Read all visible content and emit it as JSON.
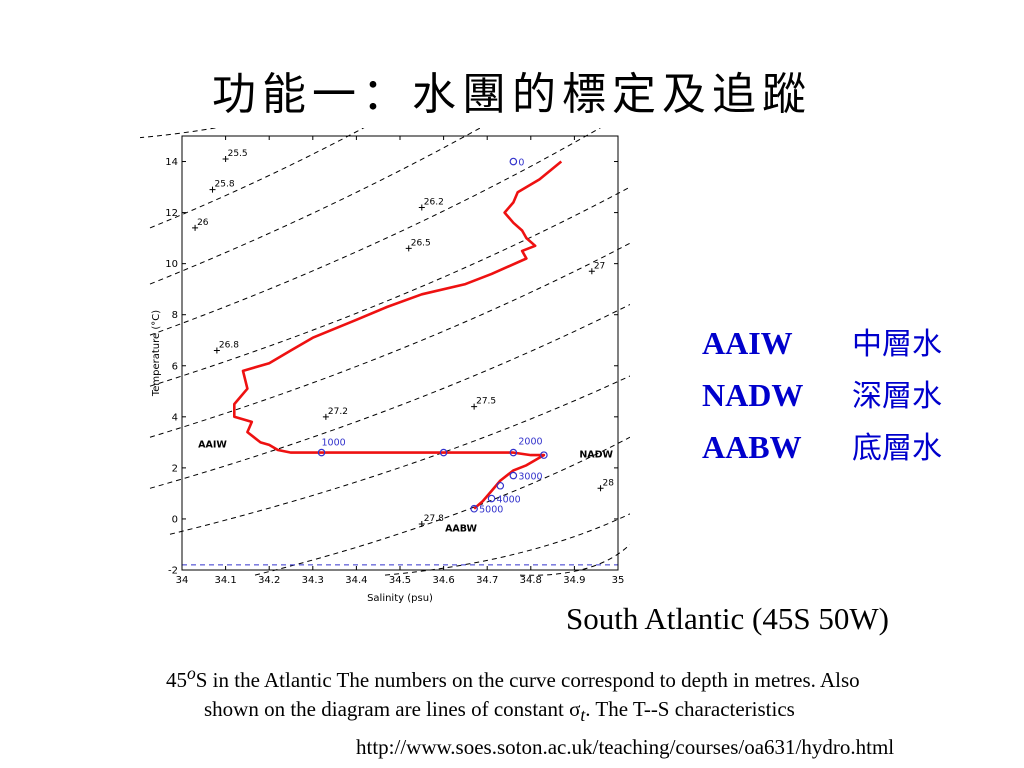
{
  "slide": {
    "title": "功能一：水團的標定及追蹤",
    "location": "South Atlantic (45S 50W)",
    "caption": {
      "lat": "45",
      "deg_sup": "o",
      "line1_rest": "S in the Atlantic The numbers on the curve correspond to depth in metres. Also",
      "line2_a": "shown on the diagram are lines of constant ",
      "sigma": "σ",
      "sigma_sub": "t",
      "line2_b": ". The T--S characteristics"
    },
    "url": "http://www.soes.soton.ac.uk/teaching/courses/oa631/hydro.html"
  },
  "legend": [
    {
      "abbr": "AAIW",
      "zh": "中層水"
    },
    {
      "abbr": "NADW",
      "zh": "深層水"
    },
    {
      "abbr": "AABW",
      "zh": "底層水"
    }
  ],
  "colors": {
    "curve": "#ee1111",
    "depth_marker": "#3333cc",
    "legend_text": "#0000cc",
    "isopycnal": "#000000"
  },
  "chart_data": {
    "type": "line",
    "xlabel": "Salinity (psu)",
    "ylabel": "Temperature (°C)",
    "xlim": [
      34,
      35
    ],
    "ylim": [
      -2,
      15
    ],
    "xticks": [
      "34",
      "34.1",
      "34.2",
      "34.3",
      "34.4",
      "34.5",
      "34.6",
      "34.7",
      "34.8",
      "34.9",
      "35"
    ],
    "yticks": [
      "-2",
      "0",
      "2",
      "4",
      "6",
      "8",
      "10",
      "12",
      "14"
    ],
    "grid": false,
    "series": [
      {
        "style": "solid",
        "x": [
          34.87,
          34.82,
          34.77,
          34.76,
          34.74,
          34.76,
          34.78,
          34.79,
          34.81,
          34.78,
          34.79,
          34.71,
          34.65,
          34.55,
          34.47,
          34.4,
          34.3,
          34.25,
          34.2,
          34.14,
          34.15,
          34.12,
          34.12,
          34.16,
          34.15,
          34.18,
          34.2,
          34.22,
          34.25,
          34.32,
          34.44,
          34.6,
          34.7,
          34.76,
          34.8,
          34.83,
          34.79,
          34.76,
          34.73,
          34.71,
          34.69,
          34.67
        ],
        "y": [
          14.0,
          13.3,
          12.8,
          12.4,
          12.0,
          11.6,
          11.3,
          11.0,
          10.7,
          10.5,
          10.2,
          9.6,
          9.2,
          8.8,
          8.3,
          7.8,
          7.1,
          6.6,
          6.1,
          5.8,
          5.1,
          4.5,
          4.0,
          3.8,
          3.4,
          3.0,
          2.9,
          2.7,
          2.6,
          2.6,
          2.6,
          2.6,
          2.6,
          2.6,
          2.5,
          2.5,
          2.1,
          1.9,
          1.5,
          1.1,
          0.7,
          0.4
        ]
      }
    ],
    "depth_labels": [
      {
        "depth": "0",
        "salinity": 34.76,
        "temperature": 14.0
      },
      {
        "depth": "1000",
        "salinity": 34.32,
        "temperature": 2.6
      },
      {
        "depth": "",
        "salinity": 34.6,
        "temperature": 2.6
      },
      {
        "depth": "2000",
        "salinity": 34.76,
        "temperature": 2.6
      },
      {
        "depth": "",
        "salinity": 34.83,
        "temperature": 2.5
      },
      {
        "depth": "3000",
        "salinity": 34.76,
        "temperature": 1.7
      },
      {
        "depth": "",
        "salinity": 34.73,
        "temperature": 1.3
      },
      {
        "depth": "4000",
        "salinity": 34.71,
        "temperature": 0.8
      },
      {
        "depth": "5000",
        "salinity": 34.67,
        "temperature": 0.4
      }
    ],
    "water_mass_labels": [
      {
        "label": "AAIW",
        "salinity": 34.07,
        "temperature": 2.8
      },
      {
        "label": "NADW",
        "salinity": 34.95,
        "temperature": 2.4
      },
      {
        "label": "AABW",
        "salinity": 34.64,
        "temperature": -0.5
      }
    ],
    "isopycnal_labels": [
      {
        "label": "25.5",
        "salinity": 34.1,
        "temperature": 14.1
      },
      {
        "label": "25.8",
        "salinity": 34.07,
        "temperature": 12.9
      },
      {
        "label": "26",
        "salinity": 34.03,
        "temperature": 11.4
      },
      {
        "label": "26.2",
        "salinity": 34.55,
        "temperature": 12.2
      },
      {
        "label": "26.5",
        "salinity": 34.52,
        "temperature": 10.6
      },
      {
        "label": "27",
        "salinity": 34.94,
        "temperature": 9.7
      },
      {
        "label": "26.8",
        "salinity": 34.08,
        "temperature": 6.6
      },
      {
        "label": "27.2",
        "salinity": 34.33,
        "temperature": 4.0
      },
      {
        "label": "27.5",
        "salinity": 34.67,
        "temperature": 4.4
      },
      {
        "label": "28",
        "salinity": 34.96,
        "temperature": 1.2
      },
      {
        "label": "27.8",
        "salinity": 34.55,
        "temperature": -0.2
      }
    ]
  }
}
